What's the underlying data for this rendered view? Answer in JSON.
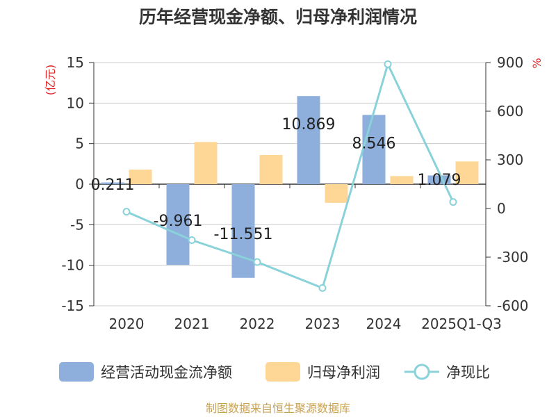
{
  "chart_data": {
    "type": "bar",
    "title": "历年经营现金净额、归母净利润情况",
    "categories": [
      "2020",
      "2021",
      "2022",
      "2023",
      "2024",
      "2025Q1-Q3"
    ],
    "series": [
      {
        "name": "经营活动现金流净额",
        "kind": "bar",
        "axis": "left",
        "color": "#8eaedb",
        "values": [
          0.211,
          -9.961,
          -11.551,
          10.869,
          8.546,
          1.079
        ],
        "labels": [
          "0.211",
          "-9.961",
          "-11.551",
          "10.869",
          "8.546",
          "1.079"
        ]
      },
      {
        "name": "归母净利润",
        "kind": "bar",
        "axis": "left",
        "color": "#fed797",
        "values": [
          1.8,
          5.2,
          3.6,
          -2.3,
          1.0,
          2.8
        ]
      },
      {
        "name": "净现比",
        "kind": "line",
        "axis": "right",
        "color": "#8ad2d9",
        "values": [
          -20,
          -195,
          -330,
          -490,
          890,
          40
        ]
      }
    ],
    "y_left": {
      "label": "(亿元)",
      "ylim": [
        -15,
        15
      ],
      "ticks": [
        "15",
        "10",
        "5",
        "0",
        "-5",
        "-10",
        "-15"
      ],
      "tick_values": [
        15,
        10,
        5,
        0,
        -5,
        -10,
        -15
      ]
    },
    "y_right": {
      "label": "%",
      "ylim": [
        -600,
        900
      ],
      "ticks": [
        "900",
        "600",
        "300",
        "0",
        "-300",
        "-600"
      ],
      "tick_values": [
        900,
        600,
        300,
        0,
        -300,
        -600
      ]
    },
    "legend": {
      "position": "bottom",
      "items": [
        "经营活动现金流净额",
        "归母净利润",
        "净现比"
      ]
    },
    "source": "制图数据来自恒生聚源数据库"
  }
}
